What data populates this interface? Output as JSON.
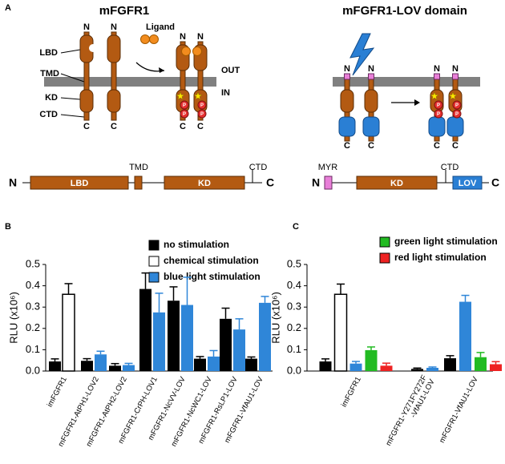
{
  "panels": {
    "a": {
      "label": "A",
      "left": {
        "title": "mFGFR1",
        "ligand": "Ligand",
        "n": "N",
        "c": "C",
        "lbd": "LBD",
        "tmd": "TMD",
        "kd": "KD",
        "ctd": "CTD",
        "out": "OUT",
        "in": "IN",
        "p": "P",
        "domain_bar": {
          "n": "N",
          "lbd": "LBD",
          "tmd": "TMD",
          "kd": "KD",
          "ctd": "CTD",
          "c": "C"
        }
      },
      "right": {
        "title": "mFGFR1-LOV domain",
        "n": "N",
        "c": "C",
        "p": "P",
        "domain_bar": {
          "n": "N",
          "myr": "MYR",
          "kd": "KD",
          "ctd": "CTD",
          "lov": "LOV",
          "c": "C"
        }
      }
    },
    "b": {
      "label": "B"
    },
    "c": {
      "label": "C"
    }
  },
  "chart_data": [
    {
      "type": "bar",
      "ylabel": "RLU (x10⁶)",
      "categories": [
        "imFGFR1",
        "mFGFR1-AtPH1-LOV2",
        "mFGFR1-AtPH2-LOV2",
        "mFGFR1-CrPH-LOV1",
        "mFGFR1-NcVV-LOV",
        "mFGFR1-NcWC1-LOV",
        "mFGFR1-RsLP1-LOV",
        "mFGFR1-VfAU1-LOV"
      ],
      "series": [
        {
          "name": "no stimulation",
          "color": "#000000",
          "values": [
            0.045,
            0.048,
            0.025,
            0.385,
            0.33,
            0.058,
            0.245,
            0.058
          ],
          "errors": [
            0.012,
            0.01,
            0.01,
            0.075,
            0.065,
            0.01,
            0.05,
            0.008
          ]
        },
        {
          "name": "chemical stimulation",
          "color": "#ffffff",
          "values": [
            0.36,
            null,
            null,
            null,
            null,
            null,
            null,
            null
          ],
          "errors": [
            0.05,
            null,
            null,
            null,
            null,
            null,
            null,
            null
          ]
        },
        {
          "name": "blue light stimulation",
          "color": "#2f86d8",
          "values": [
            null,
            0.078,
            0.028,
            0.275,
            0.31,
            0.068,
            0.195,
            0.32
          ],
          "errors": [
            null,
            0.015,
            0.008,
            0.09,
            0.13,
            0.028,
            0.05,
            0.03
          ]
        }
      ],
      "ylim": [
        0,
        0.5
      ],
      "yticks": [
        {
          "value": 0,
          "label": "0.0"
        },
        0.1,
        0.2,
        0.3,
        0.4,
        0.5
      ]
    },
    {
      "type": "bar",
      "ylabel": "RLU (x10⁶)",
      "categories": [
        "imFGFR1",
        "mFGFR1-Y271FY272F\n-VfAU1-LOV",
        "mFGFR1-VfAU1-LOV"
      ],
      "series": [
        {
          "color": "#000000",
          "values": [
            0.045,
            0.01,
            0.06
          ],
          "errors": [
            0.012,
            0.004,
            0.012
          ]
        },
        {
          "color": "#ffffff",
          "values": [
            0.36,
            null,
            null
          ],
          "errors": [
            0.048,
            null,
            null
          ]
        },
        {
          "color": "#2f86d8",
          "values": [
            0.035,
            0.015,
            0.325
          ],
          "errors": [
            0.01,
            0.004,
            0.03
          ]
        },
        {
          "name": "green light stimulation",
          "color": "#22bb22",
          "values": [
            0.098,
            null,
            0.065
          ],
          "errors": [
            0.015,
            null,
            0.022
          ]
        },
        {
          "name": "red light stimulation",
          "color": "#ee2222",
          "values": [
            0.025,
            null,
            0.032
          ],
          "errors": [
            0.012,
            null,
            0.012
          ]
        }
      ],
      "ylim": [
        0,
        0.5
      ],
      "yticks": [
        {
          "value": 0,
          "label": "0.0"
        },
        0.1,
        0.2,
        0.3,
        0.4,
        0.5
      ]
    }
  ]
}
